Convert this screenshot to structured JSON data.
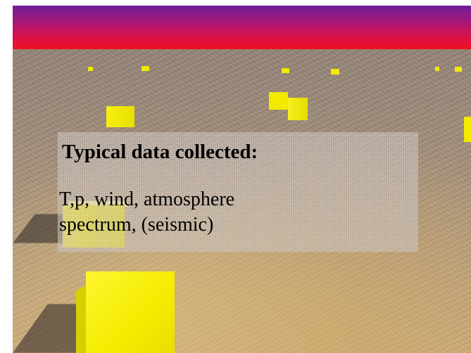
{
  "slide": {
    "heading": "Typical data collected:",
    "body_lines": [
      "T,p, wind, atmosphere",
      "spectrum, (seismic)"
    ]
  },
  "colors": {
    "cube": "#f2ea00",
    "cube_shade": "#c9c000",
    "sky_top": "#6d1f9a",
    "sky_bottom": "#f00f20"
  }
}
